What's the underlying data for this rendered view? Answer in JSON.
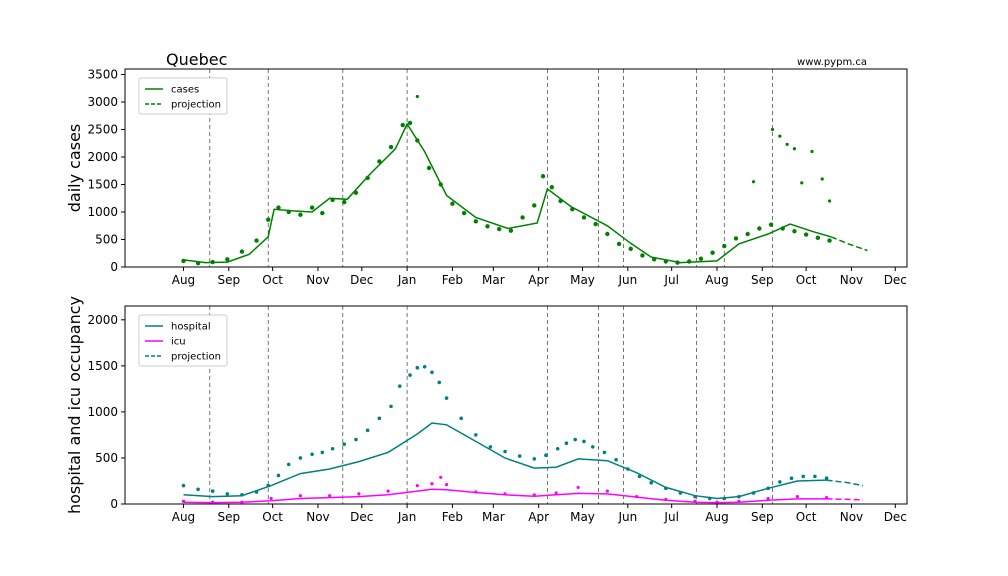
{
  "title": "Quebec",
  "credit": "www.pypm.ca",
  "colors": {
    "cases": "#008000",
    "hospital": "#008080",
    "icu": "#ff00ff",
    "vline": "#555555"
  },
  "chart_data": [
    {
      "type": "line",
      "ylabel": "daily cases",
      "ylim": [
        0,
        3600
      ],
      "yticks": [
        0,
        500,
        1000,
        1500,
        2000,
        2500,
        3000,
        3500
      ],
      "xlim": [
        -40,
        495
      ],
      "xticks": [
        {
          "day": 0,
          "label": "Aug"
        },
        {
          "day": 31,
          "label": "Sep"
        },
        {
          "day": 61,
          "label": "Oct"
        },
        {
          "day": 92,
          "label": "Nov"
        },
        {
          "day": 122,
          "label": "Dec"
        },
        {
          "day": 153,
          "label": "Jan"
        },
        {
          "day": 184,
          "label": "Feb"
        },
        {
          "day": 212,
          "label": "Mar"
        },
        {
          "day": 243,
          "label": "Apr"
        },
        {
          "day": 273,
          "label": "May"
        },
        {
          "day": 304,
          "label": "Jun"
        },
        {
          "day": 334,
          "label": "Jul"
        },
        {
          "day": 365,
          "label": "Aug"
        },
        {
          "day": 396,
          "label": "Sep"
        },
        {
          "day": 426,
          "label": "Oct"
        },
        {
          "day": 457,
          "label": "Nov"
        },
        {
          "day": 487,
          "label": "Dec"
        }
      ],
      "vlines": [
        18,
        58,
        109,
        153,
        249,
        284,
        301,
        351,
        370,
        403
      ],
      "legend": {
        "position": "upper left",
        "entries": [
          {
            "label": "cases",
            "style": "solid"
          },
          {
            "label": "projection",
            "style": "dashed"
          }
        ]
      },
      "series": [
        {
          "name": "cases",
          "style": "solid",
          "x": [
            0,
            15,
            30,
            45,
            58,
            62,
            75,
            88,
            100,
            112,
            128,
            145,
            153,
            165,
            180,
            200,
            222,
            242,
            249,
            265,
            290,
            305,
            320,
            340,
            365,
            380,
            400,
            415,
            430,
            443
          ],
          "y": [
            130,
            80,
            90,
            230,
            550,
            1050,
            1020,
            1000,
            1250,
            1230,
            1700,
            2150,
            2600,
            2100,
            1300,
            900,
            700,
            800,
            1420,
            1100,
            750,
            450,
            180,
            80,
            110,
            420,
            600,
            780,
            650,
            550
          ]
        },
        {
          "name": "projection",
          "style": "dashed",
          "x": [
            443,
            455,
            468
          ],
          "y": [
            550,
            420,
            300
          ]
        }
      ],
      "scatter": {
        "name": "daily reported",
        "x": [
          0,
          10,
          20,
          30,
          40,
          50,
          58,
          65,
          72,
          80,
          88,
          95,
          102,
          110,
          118,
          126,
          134,
          142,
          150,
          155,
          160,
          168,
          176,
          184,
          192,
          200,
          208,
          216,
          224,
          232,
          240,
          246,
          252,
          258,
          266,
          274,
          282,
          290,
          298,
          306,
          314,
          322,
          330,
          338,
          346,
          354,
          362,
          370,
          378,
          386,
          394,
          402,
          410,
          418,
          426,
          434,
          442
        ],
        "y": [
          110,
          70,
          90,
          140,
          280,
          480,
          860,
          1080,
          1000,
          950,
          1080,
          980,
          1220,
          1180,
          1350,
          1620,
          1920,
          2180,
          2580,
          2620,
          2300,
          1800,
          1500,
          1150,
          980,
          830,
          740,
          690,
          660,
          900,
          1120,
          1650,
          1450,
          1200,
          1050,
          900,
          780,
          600,
          420,
          330,
          210,
          140,
          100,
          80,
          100,
          150,
          260,
          380,
          520,
          600,
          700,
          770,
          700,
          650,
          590,
          530,
          480
        ]
      },
      "outliers": {
        "x": [
          160,
          390,
          403,
          408,
          413,
          418,
          423,
          430,
          437,
          442
        ],
        "y": [
          3100,
          1550,
          2500,
          2380,
          2230,
          2150,
          1530,
          2100,
          1600,
          1200
        ]
      }
    },
    {
      "type": "line",
      "ylabel": "hospital and icu occupancy",
      "ylim": [
        0,
        2150
      ],
      "yticks": [
        0,
        500,
        1000,
        1500,
        2000
      ],
      "xlim": [
        -40,
        495
      ],
      "xticks": [
        {
          "day": 0,
          "label": "Aug"
        },
        {
          "day": 31,
          "label": "Sep"
        },
        {
          "day": 61,
          "label": "Oct"
        },
        {
          "day": 92,
          "label": "Nov"
        },
        {
          "day": 122,
          "label": "Dec"
        },
        {
          "day": 153,
          "label": "Jan"
        },
        {
          "day": 184,
          "label": "Feb"
        },
        {
          "day": 212,
          "label": "Mar"
        },
        {
          "day": 243,
          "label": "Apr"
        },
        {
          "day": 273,
          "label": "May"
        },
        {
          "day": 304,
          "label": "Jun"
        },
        {
          "day": 334,
          "label": "Jul"
        },
        {
          "day": 365,
          "label": "Aug"
        },
        {
          "day": 396,
          "label": "Sep"
        },
        {
          "day": 426,
          "label": "Oct"
        },
        {
          "day": 457,
          "label": "Nov"
        },
        {
          "day": 487,
          "label": "Dec"
        }
      ],
      "vlines": [
        18,
        58,
        109,
        153,
        249,
        284,
        301,
        351,
        370,
        403
      ],
      "legend": {
        "position": "upper left",
        "entries": [
          {
            "label": "hospital",
            "style": "solid"
          },
          {
            "label": "icu",
            "style": "solid"
          },
          {
            "label": "projection",
            "style": "dashed"
          }
        ]
      },
      "series": [
        {
          "name": "hospital",
          "style": "solid",
          "x": [
            0,
            20,
            40,
            60,
            80,
            100,
            120,
            140,
            160,
            170,
            180,
            200,
            220,
            240,
            255,
            270,
            290,
            310,
            330,
            350,
            365,
            380,
            400,
            420,
            440
          ],
          "y": [
            100,
            80,
            90,
            200,
            330,
            380,
            460,
            560,
            760,
            880,
            860,
            680,
            500,
            390,
            400,
            490,
            470,
            340,
            180,
            90,
            60,
            80,
            170,
            250,
            260
          ]
        },
        {
          "name": "hospital projection",
          "style": "dashed",
          "x": [
            440,
            455,
            465
          ],
          "y": [
            260,
            230,
            200
          ]
        },
        {
          "name": "icu",
          "style": "solid",
          "x": [
            0,
            20,
            40,
            60,
            80,
            100,
            120,
            140,
            160,
            170,
            180,
            200,
            220,
            240,
            255,
            270,
            290,
            310,
            330,
            350,
            365,
            380,
            400,
            420,
            440
          ],
          "y": [
            20,
            15,
            20,
            35,
            60,
            70,
            80,
            100,
            140,
            160,
            155,
            125,
            100,
            85,
            100,
            115,
            110,
            75,
            40,
            20,
            15,
            20,
            40,
            55,
            55
          ]
        },
        {
          "name": "icu projection",
          "style": "dashed",
          "x": [
            440,
            455,
            465
          ],
          "y": [
            55,
            50,
            45
          ]
        }
      ],
      "hospital_points": {
        "x": [
          0,
          10,
          20,
          30,
          40,
          50,
          58,
          65,
          72,
          80,
          88,
          95,
          102,
          110,
          118,
          126,
          134,
          142,
          148,
          155,
          160,
          165,
          170,
          175,
          180,
          190,
          200,
          210,
          220,
          230,
          240,
          248,
          256,
          262,
          268,
          274,
          280,
          288,
          296,
          304,
          312,
          320,
          330,
          340,
          350,
          360,
          370,
          380,
          390,
          400,
          408,
          416,
          424,
          432,
          440
        ],
        "y": [
          200,
          160,
          140,
          110,
          100,
          130,
          200,
          310,
          430,
          500,
          540,
          560,
          600,
          650,
          700,
          800,
          930,
          1060,
          1280,
          1400,
          1480,
          1490,
          1430,
          1320,
          1150,
          930,
          750,
          620,
          570,
          520,
          490,
          530,
          600,
          660,
          700,
          680,
          620,
          560,
          480,
          380,
          300,
          230,
          170,
          120,
          80,
          60,
          60,
          80,
          120,
          170,
          240,
          280,
          300,
          300,
          280
        ]
      },
      "icu_points": {
        "x": [
          0,
          20,
          40,
          60,
          80,
          100,
          120,
          140,
          160,
          170,
          180,
          200,
          220,
          240,
          255,
          270,
          290,
          310,
          330,
          350,
          365,
          380,
          400,
          420,
          440
        ],
        "y": [
          30,
          20,
          20,
          60,
          90,
          90,
          110,
          140,
          200,
          220,
          210,
          130,
          110,
          100,
          120,
          180,
          140,
          80,
          50,
          30,
          20,
          30,
          60,
          80,
          70
        ]
      },
      "icu_outliers": {
        "x": [
          176
        ],
        "y": [
          290
        ]
      }
    }
  ]
}
